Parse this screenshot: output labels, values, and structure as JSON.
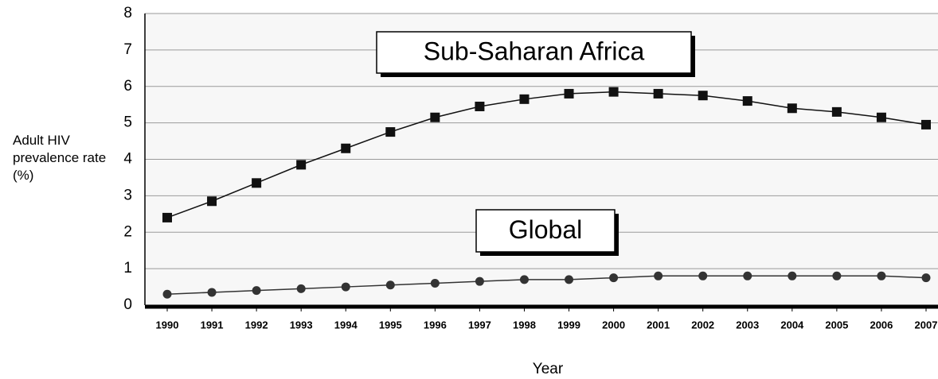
{
  "chart_data": {
    "type": "line",
    "y_label": "Adult HIV prevalence rate (%)",
    "x_label": "Year",
    "categories": [
      "1990",
      "1991",
      "1992",
      "1993",
      "1994",
      "1995",
      "1996",
      "1997",
      "1998",
      "1999",
      "2000",
      "2001",
      "2002",
      "2003",
      "2004",
      "2005",
      "2006",
      "2007"
    ],
    "series": [
      {
        "name": "Sub-Saharan Africa",
        "color": "#111111",
        "marker": "square",
        "values": [
          2.4,
          2.85,
          3.35,
          3.85,
          4.3,
          4.75,
          5.15,
          5.45,
          5.65,
          5.8,
          5.85,
          5.8,
          5.75,
          5.6,
          5.4,
          5.3,
          5.15,
          4.95
        ]
      },
      {
        "name": "Global",
        "color": "#333333",
        "marker": "circle",
        "values": [
          0.3,
          0.35,
          0.4,
          0.45,
          0.5,
          0.55,
          0.6,
          0.65,
          0.7,
          0.7,
          0.75,
          0.8,
          0.8,
          0.8,
          0.8,
          0.8,
          0.8,
          0.75
        ]
      }
    ],
    "ylim": [
      0,
      8
    ],
    "yticks": [
      0,
      1,
      2,
      3,
      4,
      5,
      6,
      7,
      8
    ],
    "grid": true
  }
}
